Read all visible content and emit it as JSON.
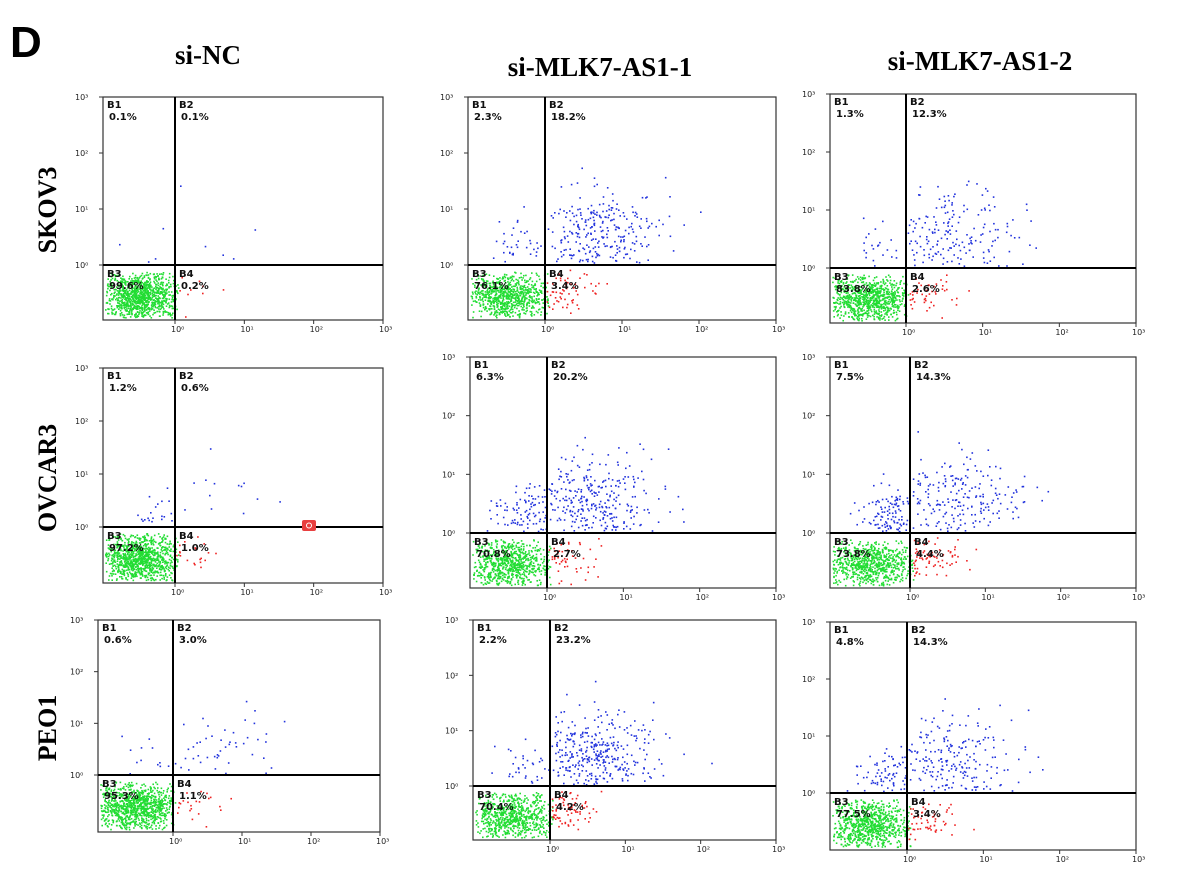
{
  "figure": {
    "panel_letter": "D",
    "column_titles": [
      "si-NC",
      "si-MLK7-AS1-1",
      "si-MLK7-AS1-2"
    ],
    "row_titles": [
      "SKOV3",
      "OVCAR3",
      "PEO1"
    ]
  },
  "colors": {
    "B1": "#2233dd",
    "B2": "#2233dd",
    "B3": "#22dd33",
    "B4": "#ee2222",
    "gate_lines": "#000000",
    "marker": "#e84040"
  },
  "chart_data": [
    {
      "type": "scatter",
      "cell_line": "SKOV3",
      "condition": "si-NC",
      "xscale": "log",
      "yscale": "log",
      "xlim": [
        0.1,
        1000
      ],
      "ylim": [
        0.1,
        1000
      ],
      "gate": [
        1,
        1
      ],
      "x_ticks": [
        "10⁰",
        "10¹",
        "10²",
        "10³"
      ],
      "y_ticks": [
        "10⁰",
        "10¹",
        "10²",
        "10³"
      ],
      "quadrants": [
        {
          "name": "B1",
          "percent": "0.1%"
        },
        {
          "name": "B2",
          "percent": "0.1%"
        },
        {
          "name": "B3",
          "percent": "99.6%"
        },
        {
          "name": "B4",
          "percent": "0.2%"
        }
      ]
    },
    {
      "type": "scatter",
      "cell_line": "SKOV3",
      "condition": "si-MLK7-AS1-1",
      "xscale": "log",
      "yscale": "log",
      "xlim": [
        0.1,
        1000
      ],
      "ylim": [
        0.1,
        1000
      ],
      "gate": [
        1,
        1
      ],
      "x_ticks": [
        "10⁰",
        "10¹",
        "10²",
        "10³"
      ],
      "y_ticks": [
        "10⁰",
        "10¹",
        "10²",
        "10³"
      ],
      "quadrants": [
        {
          "name": "B1",
          "percent": "2.3%"
        },
        {
          "name": "B2",
          "percent": "18.2%"
        },
        {
          "name": "B3",
          "percent": "76.1%"
        },
        {
          "name": "B4",
          "percent": "3.4%"
        }
      ]
    },
    {
      "type": "scatter",
      "cell_line": "SKOV3",
      "condition": "si-MLK7-AS1-2",
      "xscale": "log",
      "yscale": "log",
      "xlim": [
        0.1,
        1000
      ],
      "ylim": [
        0.1,
        1000
      ],
      "gate": [
        1,
        1
      ],
      "x_ticks": [
        "10⁰",
        "10¹",
        "10²",
        "10³"
      ],
      "y_ticks": [
        "10⁰",
        "10¹",
        "10²",
        "10³"
      ],
      "quadrants": [
        {
          "name": "B1",
          "percent": "1.3%"
        },
        {
          "name": "B2",
          "percent": "12.3%"
        },
        {
          "name": "B3",
          "percent": "83.8%"
        },
        {
          "name": "B4",
          "percent": "2.6%"
        }
      ]
    },
    {
      "type": "scatter",
      "cell_line": "OVCAR3",
      "condition": "si-NC",
      "xscale": "log",
      "yscale": "log",
      "xlim": [
        0.1,
        1000
      ],
      "ylim": [
        0.1,
        1000
      ],
      "gate": [
        1,
        1
      ],
      "x_ticks": [
        "10⁰",
        "10¹",
        "10²",
        "10³"
      ],
      "y_ticks": [
        "10⁰",
        "10¹",
        "10²",
        "10³"
      ],
      "quadrants": [
        {
          "name": "B1",
          "percent": "1.2%"
        },
        {
          "name": "B2",
          "percent": "0.6%"
        },
        {
          "name": "B3",
          "percent": "97.2%"
        },
        {
          "name": "B4",
          "percent": "1.0%"
        }
      ]
    },
    {
      "type": "scatter",
      "cell_line": "OVCAR3",
      "condition": "si-MLK7-AS1-1",
      "xscale": "log",
      "yscale": "log",
      "xlim": [
        0.1,
        1000
      ],
      "ylim": [
        0.1,
        1000
      ],
      "gate": [
        1,
        1
      ],
      "x_ticks": [
        "10⁰",
        "10¹",
        "10²",
        "10³"
      ],
      "y_ticks": [
        "10⁰",
        "10¹",
        "10²",
        "10³"
      ],
      "quadrants": [
        {
          "name": "B1",
          "percent": "6.3%"
        },
        {
          "name": "B2",
          "percent": "20.2%"
        },
        {
          "name": "B3",
          "percent": "70.8%"
        },
        {
          "name": "B4",
          "percent": "2.7%"
        }
      ]
    },
    {
      "type": "scatter",
      "cell_line": "OVCAR3",
      "condition": "si-MLK7-AS1-2",
      "xscale": "log",
      "yscale": "log",
      "xlim": [
        0.1,
        1000
      ],
      "ylim": [
        0.1,
        1000
      ],
      "gate": [
        1,
        1
      ],
      "x_ticks": [
        "10⁰",
        "10¹",
        "10²",
        "10³"
      ],
      "y_ticks": [
        "10⁰",
        "10¹",
        "10²",
        "10³"
      ],
      "quadrants": [
        {
          "name": "B1",
          "percent": "7.5%"
        },
        {
          "name": "B2",
          "percent": "14.3%"
        },
        {
          "name": "B3",
          "percent": "73.8%"
        },
        {
          "name": "B4",
          "percent": "4.4%"
        }
      ]
    },
    {
      "type": "scatter",
      "cell_line": "PEO1",
      "condition": "si-NC",
      "xscale": "log",
      "yscale": "log",
      "xlim": [
        0.1,
        1000
      ],
      "ylim": [
        0.1,
        1000
      ],
      "gate": [
        1,
        1
      ],
      "x_ticks": [
        "10⁰",
        "10¹",
        "10²",
        "10³"
      ],
      "y_ticks": [
        "10⁰",
        "10¹",
        "10²",
        "10³"
      ],
      "quadrants": [
        {
          "name": "B1",
          "percent": "0.6%"
        },
        {
          "name": "B2",
          "percent": "3.0%"
        },
        {
          "name": "B3",
          "percent": "95.3%"
        },
        {
          "name": "B4",
          "percent": "1.1%"
        }
      ]
    },
    {
      "type": "scatter",
      "cell_line": "PEO1",
      "condition": "si-MLK7-AS1-1",
      "xscale": "log",
      "yscale": "log",
      "xlim": [
        0.1,
        1000
      ],
      "ylim": [
        0.1,
        1000
      ],
      "gate": [
        1,
        1
      ],
      "x_ticks": [
        "10⁰",
        "10¹",
        "10²",
        "10³"
      ],
      "y_ticks": [
        "10⁰",
        "10¹",
        "10²",
        "10³"
      ],
      "quadrants": [
        {
          "name": "B1",
          "percent": "2.2%"
        },
        {
          "name": "B2",
          "percent": "23.2%"
        },
        {
          "name": "B3",
          "percent": "70.4%"
        },
        {
          "name": "B4",
          "percent": "4.2%"
        }
      ]
    },
    {
      "type": "scatter",
      "cell_line": "PEO1",
      "condition": "si-MLK7-AS1-2",
      "xscale": "log",
      "yscale": "log",
      "xlim": [
        0.1,
        1000
      ],
      "ylim": [
        0.1,
        1000
      ],
      "gate": [
        1,
        1
      ],
      "x_ticks": [
        "10⁰",
        "10¹",
        "10²",
        "10³"
      ],
      "y_ticks": [
        "10⁰",
        "10¹",
        "10²",
        "10³"
      ],
      "quadrants": [
        {
          "name": "B1",
          "percent": "4.8%"
        },
        {
          "name": "B2",
          "percent": "14.3%"
        },
        {
          "name": "B3",
          "percent": "77.5%"
        },
        {
          "name": "B4",
          "percent": "3.4%"
        }
      ]
    }
  ]
}
